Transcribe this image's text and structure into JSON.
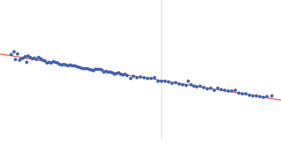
{
  "chart_data": {
    "type": "scatter",
    "xlim": [
      0,
      400
    ],
    "ylim": [
      0,
      200
    ],
    "color": "#3f63ad",
    "x": [
      16,
      20,
      22,
      25,
      28,
      30,
      33,
      36,
      38,
      40,
      43,
      46,
      49,
      52,
      55,
      58,
      61,
      64,
      67,
      70,
      73,
      76,
      79,
      82,
      85,
      88,
      91,
      94,
      97,
      100,
      103,
      106,
      109,
      112,
      115,
      118,
      121,
      124,
      127,
      130,
      133,
      136,
      139,
      142,
      145,
      148,
      151,
      154,
      157,
      160,
      163,
      166,
      169,
      172,
      175,
      178,
      181,
      186,
      190,
      195,
      200,
      205,
      210,
      215,
      220,
      225,
      230,
      235,
      240,
      245,
      250,
      255,
      260,
      265,
      268,
      272,
      276,
      280,
      285,
      290,
      295,
      300,
      305,
      310,
      315,
      320,
      325,
      330,
      335,
      340,
      345,
      350,
      355,
      360,
      365,
      370,
      375,
      380,
      387
    ],
    "values": [
      122,
      126,
      115,
      123,
      114,
      116,
      117,
      119,
      111,
      120,
      118,
      116,
      117,
      115,
      118,
      116,
      114,
      113,
      110,
      111,
      110,
      112,
      111,
      110,
      108,
      107,
      108,
      107,
      106,
      107,
      106,
      106,
      105,
      104,
      103,
      102,
      102,
      102,
      101,
      100,
      99,
      101,
      101,
      101,
      100,
      97,
      98,
      97,
      97,
      96,
      94,
      95,
      96,
      94,
      93,
      94,
      92,
      88,
      91,
      89,
      90,
      89,
      88,
      88,
      89,
      84,
      84,
      84,
      83,
      81,
      82,
      80,
      79,
      78,
      84,
      79,
      77,
      76,
      77,
      75,
      73,
      74,
      71,
      74,
      72,
      71,
      70,
      70,
      71,
      67,
      66,
      66,
      64,
      63,
      63,
      62,
      61,
      62,
      63
    ],
    "fit_line": {
      "color": "#e03a2f",
      "x": [
        0,
        400
      ],
      "values": [
        123,
        57
      ]
    },
    "reference_x": {
      "color": "#c9d2e3",
      "value": 230
    }
  }
}
